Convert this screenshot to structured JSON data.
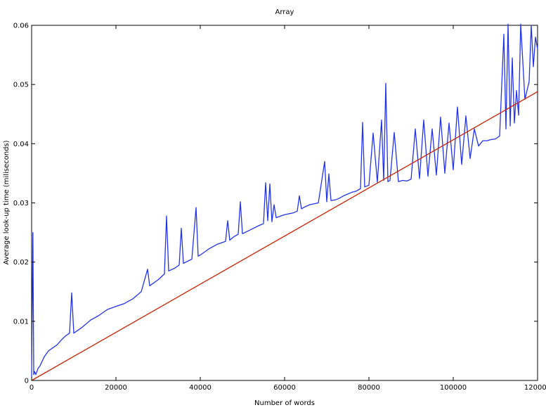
{
  "chart_data": {
    "type": "line",
    "title": "Array",
    "xlabel": "Number of words",
    "ylabel": "Average look-up time (miliseconds)",
    "xlim": [
      0,
      120000
    ],
    "ylim": [
      0,
      0.06
    ],
    "x_ticks": [
      0,
      20000,
      40000,
      60000,
      80000,
      100000,
      120000
    ],
    "x_tick_labels": [
      "0",
      "20000",
      "40000",
      "60000",
      "80000",
      "100000",
      "120000"
    ],
    "y_ticks": [
      0,
      0.01,
      0.02,
      0.03,
      0.04,
      0.05,
      0.06
    ],
    "y_tick_labels": [
      "0",
      "0.01",
      "0.02",
      "0.03",
      "0.04",
      "0.05",
      "0.06"
    ],
    "grid": false,
    "legend": "none",
    "series": [
      {
        "color": "#2233ee",
        "x": [
          0,
          300,
          500,
          700,
          1000,
          1500,
          2000,
          3000,
          4000,
          5000,
          6000,
          7000,
          8000,
          9000,
          9500,
          10000,
          12000,
          14000,
          16000,
          18000,
          20000,
          22000,
          24000,
          26000,
          27500,
          28000,
          30000,
          31500,
          32000,
          32500,
          34000,
          35000,
          35500,
          36000,
          38000,
          39000,
          39500,
          40000,
          42000,
          44000,
          46000,
          46500,
          47000,
          48000,
          49000,
          49500,
          50000,
          52000,
          54000,
          55000,
          55500,
          56000,
          56500,
          57000,
          57500,
          58000,
          60000,
          62000,
          63000,
          63500,
          64000,
          65000,
          66000,
          68000,
          69500,
          70000,
          70500,
          71000,
          72000,
          73000,
          74000,
          75000,
          76000,
          77000,
          78000,
          78500,
          79000,
          80000,
          81000,
          82000,
          83000,
          83500,
          84000,
          84500,
          85000,
          86000,
          87000,
          88000,
          89000,
          90000,
          91000,
          92000,
          93000,
          94000,
          95000,
          96000,
          97000,
          98000,
          99000,
          100000,
          101000,
          102000,
          103000,
          104000,
          105000,
          106000,
          107000,
          108000,
          109000,
          110000,
          111000,
          112000,
          112500,
          113000,
          113500,
          114000,
          114500,
          115000,
          115500,
          116000,
          117000,
          118000,
          118500,
          119000,
          119500,
          120000
        ],
        "y": [
          0.0005,
          0.025,
          0.001,
          0.0015,
          0.001,
          0.002,
          0.0025,
          0.004,
          0.005,
          0.0055,
          0.006,
          0.0068,
          0.0075,
          0.008,
          0.0148,
          0.008,
          0.009,
          0.0102,
          0.011,
          0.012,
          0.0125,
          0.013,
          0.0138,
          0.015,
          0.0188,
          0.016,
          0.017,
          0.018,
          0.0278,
          0.0185,
          0.019,
          0.0195,
          0.0257,
          0.0198,
          0.0205,
          0.0292,
          0.021,
          0.0212,
          0.0222,
          0.023,
          0.0235,
          0.027,
          0.0237,
          0.0243,
          0.0247,
          0.0302,
          0.0248,
          0.0255,
          0.0262,
          0.0265,
          0.0334,
          0.027,
          0.0332,
          0.0268,
          0.0297,
          0.0275,
          0.028,
          0.0283,
          0.0286,
          0.0312,
          0.029,
          0.0294,
          0.0297,
          0.03,
          0.037,
          0.0302,
          0.0349,
          0.0304,
          0.0305,
          0.0308,
          0.0312,
          0.0315,
          0.0318,
          0.032,
          0.0324,
          0.0436,
          0.0327,
          0.033,
          0.0418,
          0.0335,
          0.044,
          0.0338,
          0.0502,
          0.0336,
          0.0338,
          0.0419,
          0.0336,
          0.0338,
          0.0337,
          0.034,
          0.0425,
          0.0341,
          0.044,
          0.0345,
          0.0425,
          0.0347,
          0.0445,
          0.035,
          0.0435,
          0.0356,
          0.0462,
          0.0365,
          0.0447,
          0.0375,
          0.0425,
          0.0396,
          0.0405,
          0.0405,
          0.0407,
          0.0408,
          0.0413,
          0.0585,
          0.0425,
          0.0602,
          0.043,
          0.0545,
          0.0435,
          0.049,
          0.0448,
          0.0602,
          0.0475,
          0.0505,
          0.06,
          0.053,
          0.058,
          0.056
        ]
      },
      {
        "color": "#cc2200",
        "x": [
          0,
          120000
        ],
        "y": [
          0,
          0.0488
        ]
      }
    ]
  }
}
